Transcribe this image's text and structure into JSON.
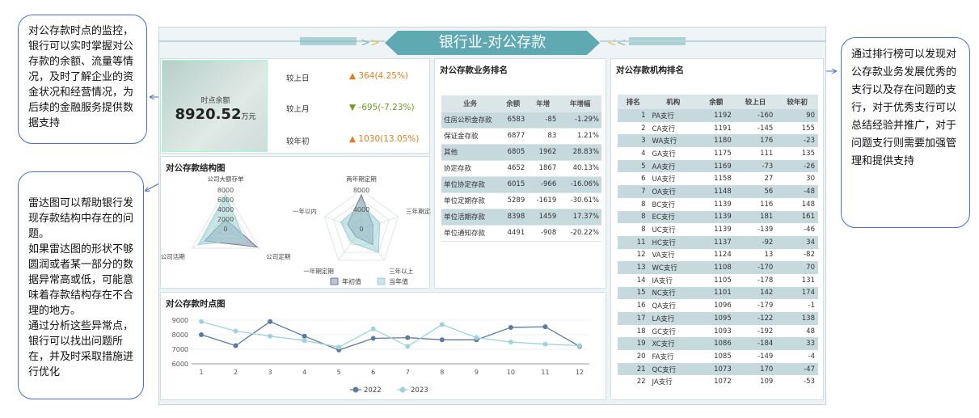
{
  "callouts": {
    "monitor": "对公存款时点的监控，银行可以实时掌握对公存款的余额、流量等情况，及时了解企业的资金状况和经营情况，为后续的金融服务提供数据支持",
    "radar": "雷达图可以帮助银行发现存款结构中存在的问题。\n如果雷达图的形状不够圆润或者某一部分的数据异常高或低，可能意味着存款结构存在不合理的地方。\n通过分析这些异常点，银行可以找出问题所在，并及时采取措施进行优化",
    "ranking": "通过排行榜可以发现对公存款业务发展优秀的支行以及存在问题的支行，对于优秀支行可以总结经验并推广，对于问题支行则需要加强管理和提供支持"
  },
  "header": {
    "title": "银行业-对公存款"
  },
  "kpi": {
    "label": "时点余额",
    "value": "8920.52",
    "unit": "万元",
    "rows": [
      {
        "label": "较上日",
        "value": "364(4.25%)",
        "dir": "up"
      },
      {
        "label": "较上月",
        "value": "-695(-7.23%)",
        "dir": "down"
      },
      {
        "label": "较年初",
        "value": "1030(13.05%)",
        "dir": "up"
      }
    ]
  },
  "structure": {
    "title": "对公存款结构图",
    "radar1": {
      "axes": [
        "公司大额存单",
        "公司定期",
        "公司活期"
      ],
      "ticks": [
        "8000",
        "6000",
        "4000",
        "2000",
        "0"
      ],
      "max": 8000,
      "series": [
        {
          "name": "年初值",
          "values": [
            2000,
            7500,
            5000
          ]
        },
        {
          "name": "当年值",
          "values": [
            7000,
            4500,
            6500
          ]
        }
      ]
    },
    "radar2": {
      "axes": [
        "两年期定期",
        "三年期定期",
        "三年以上",
        "一年期定期",
        "一年以内"
      ],
      "ticks": [
        "8000",
        "4000",
        "0"
      ],
      "max": 8000,
      "series": [
        {
          "name": "年初值",
          "values": [
            7000,
            2500,
            4000,
            2000,
            3000
          ]
        },
        {
          "name": "当年值",
          "values": [
            5000,
            4000,
            6000,
            3500,
            4500
          ]
        }
      ]
    },
    "legend": [
      "年初值",
      "当年值"
    ]
  },
  "timeline": {
    "title": "对公存款时点图",
    "chart_data": {
      "type": "line",
      "categories": [
        "1",
        "2",
        "3",
        "4",
        "5",
        "6",
        "7",
        "8",
        "9",
        "10",
        "11",
        "12"
      ],
      "yticks": [
        "9000",
        "8000",
        "7000",
        "6000"
      ],
      "ylim": [
        6000,
        9000
      ],
      "series": [
        {
          "name": "2022",
          "values": [
            8000,
            7250,
            8900,
            7900,
            6950,
            7750,
            7800,
            7650,
            7650,
            8500,
            8550,
            7200
          ],
          "color": "#5f7aa0"
        },
        {
          "name": "2023",
          "values": [
            8900,
            8250,
            7900,
            7600,
            7150,
            8400,
            7200,
            8700,
            7800,
            7500,
            7350,
            7250
          ],
          "color": "#9fd4d6"
        }
      ]
    }
  },
  "business": {
    "title": "对公存款业务排名",
    "headers": [
      "业务",
      "余额",
      "年增",
      "年增幅"
    ],
    "rows": [
      [
        "住房公积金存款",
        "6583",
        "-85",
        "-1.29%"
      ],
      [
        "保证金存款",
        "6877",
        "83",
        "1.21%"
      ],
      [
        "其他",
        "6805",
        "1962",
        "28.83%"
      ],
      [
        "协定存款",
        "4652",
        "1867",
        "40.13%"
      ],
      [
        "单位协定存款",
        "6015",
        "-966",
        "-16.06%"
      ],
      [
        "单位定期存款",
        "5289",
        "-1619",
        "-30.61%"
      ],
      [
        "单位活期存款",
        "8398",
        "1459",
        "17.37%"
      ],
      [
        "单位通知存款",
        "4491",
        "-908",
        "-20.22%"
      ]
    ]
  },
  "org": {
    "title": "对公存款机构排名",
    "headers": [
      "排名",
      "机构",
      "余额",
      "较上日",
      "较年初"
    ],
    "rows": [
      [
        "1",
        "PA支行",
        "1192",
        "-160",
        "90"
      ],
      [
        "2",
        "CA支行",
        "1191",
        "-145",
        "155"
      ],
      [
        "3",
        "WA支行",
        "1180",
        "176",
        "-23"
      ],
      [
        "4",
        "GA支行",
        "1175",
        "111",
        "135"
      ],
      [
        "5",
        "AA支行",
        "1169",
        "-73",
        "-26"
      ],
      [
        "6",
        "UA支行",
        "1158",
        "27",
        "30"
      ],
      [
        "7",
        "OA支行",
        "1148",
        "56",
        "-48"
      ],
      [
        "8",
        "BC支行",
        "1139",
        "116",
        "148"
      ],
      [
        "8",
        "EC支行",
        "1139",
        "181",
        "161"
      ],
      [
        "8",
        "UC支行",
        "1139",
        "-139",
        "-46"
      ],
      [
        "11",
        "HC支行",
        "1137",
        "-92",
        "34"
      ],
      [
        "12",
        "VA支行",
        "1124",
        "13",
        "-82"
      ],
      [
        "13",
        "WC支行",
        "1108",
        "-170",
        "70"
      ],
      [
        "14",
        "IA支行",
        "1105",
        "-178",
        "131"
      ],
      [
        "15",
        "NC支行",
        "1101",
        "142",
        "174"
      ],
      [
        "16",
        "QA支行",
        "1096",
        "-179",
        "-1"
      ],
      [
        "17",
        "LA支行",
        "1095",
        "-122",
        "138"
      ],
      [
        "18",
        "GC支行",
        "1093",
        "-192",
        "48"
      ],
      [
        "19",
        "XC支行",
        "1086",
        "-184",
        "33"
      ],
      [
        "20",
        "FA支行",
        "1085",
        "-149",
        "-4"
      ],
      [
        "21",
        "QC支行",
        "1073",
        "170",
        "-47"
      ],
      [
        "22",
        "JA支行",
        "1072",
        "109",
        "-53"
      ]
    ]
  }
}
